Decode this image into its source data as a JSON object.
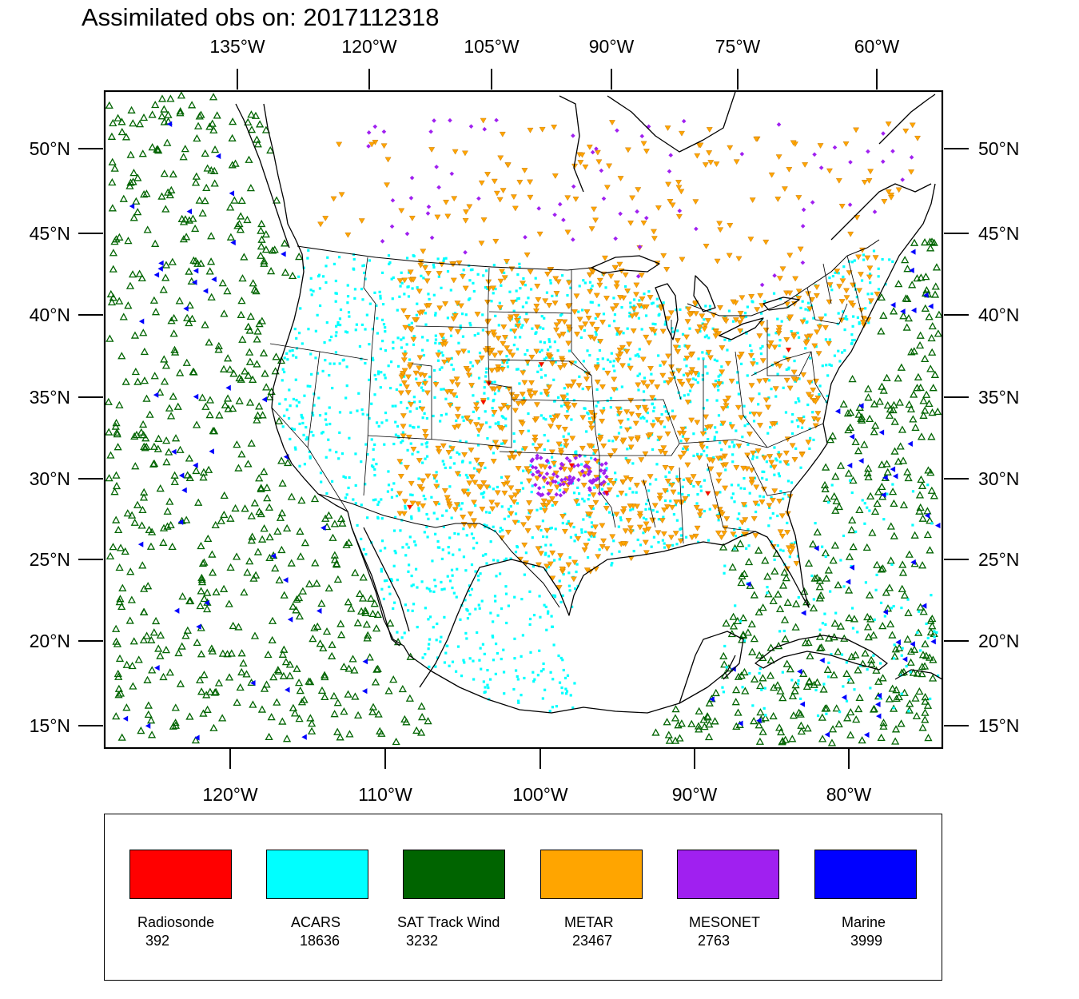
{
  "title": "Assimilated obs on: 2017112318",
  "map": {
    "top_lon_labels": [
      "135°W",
      "120°W",
      "105°W",
      "90°W",
      "75°W",
      "60°W"
    ],
    "bottom_lon_labels": [
      "120°W",
      "110°W",
      "100°W",
      "90°W",
      "80°W"
    ],
    "lat_labels": [
      "50°N",
      "45°N",
      "40°N",
      "35°N",
      "30°N",
      "25°N",
      "20°N",
      "15°N"
    ],
    "layers": [
      "coastlines",
      "country-borders",
      "us-state-borders"
    ],
    "background_color": "#ffffff",
    "boundary_color": "#000000"
  },
  "legend": {
    "items": [
      {
        "label": "Radiosonde",
        "count": "392",
        "color": "#ff0000",
        "marker": "triangle-down"
      },
      {
        "label": "ACARS",
        "count": "18636",
        "color": "#00ffff",
        "marker": "square"
      },
      {
        "label": "SAT Track Wind",
        "count": "3232",
        "color": "#006400",
        "marker": "triangle-up"
      },
      {
        "label": "METAR",
        "count": "23467",
        "color": "#ffa500",
        "marker": "triangle-down"
      },
      {
        "label": "MESONET",
        "count": "2763",
        "color": "#a020f0",
        "marker": "diamond"
      },
      {
        "label": "Marine",
        "count": "3999",
        "color": "#0000ff",
        "marker": "triangle-left"
      }
    ]
  }
}
